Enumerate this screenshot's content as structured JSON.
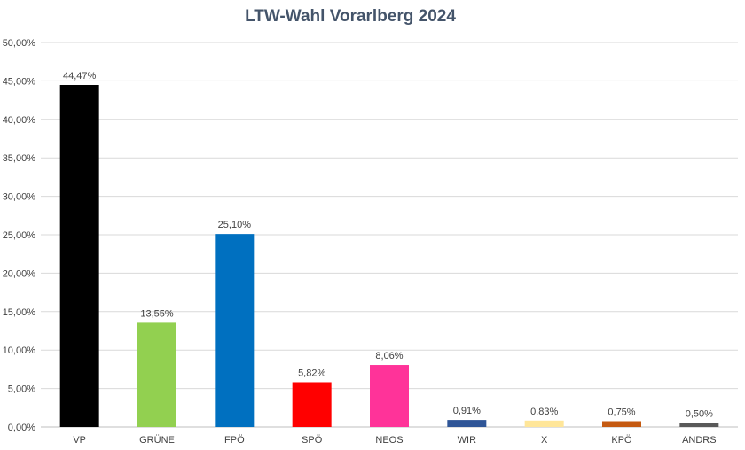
{
  "chart_data": {
    "type": "bar",
    "title": "LTW-Wahl Vorarlberg 2024",
    "xlabel": "",
    "ylabel": "",
    "ylim": [
      0,
      50
    ],
    "y_ticks": [
      "0,00%",
      "5,00%",
      "10,00%",
      "15,00%",
      "20,00%",
      "25,00%",
      "30,00%",
      "35,00%",
      "40,00%",
      "45,00%",
      "50,00%"
    ],
    "grid": true,
    "legend": "none",
    "categories": [
      "VP",
      "GRÜNE",
      "FPÖ",
      "SPÖ",
      "NEOS",
      "WIR",
      "X",
      "KPÖ",
      "ANDRS"
    ],
    "values": [
      44.47,
      13.55,
      25.1,
      5.82,
      8.06,
      0.91,
      0.83,
      0.75,
      0.5
    ],
    "data_labels": [
      "44,47%",
      "13,55%",
      "25,10%",
      "5,82%",
      "8,06%",
      "0,91%",
      "0,83%",
      "0,75%",
      "0,50%"
    ],
    "colors": [
      "#000000",
      "#92d050",
      "#0070c0",
      "#ff0000",
      "#ff3399",
      "#2f5597",
      "#ffe699",
      "#c55a11",
      "#595959"
    ]
  }
}
